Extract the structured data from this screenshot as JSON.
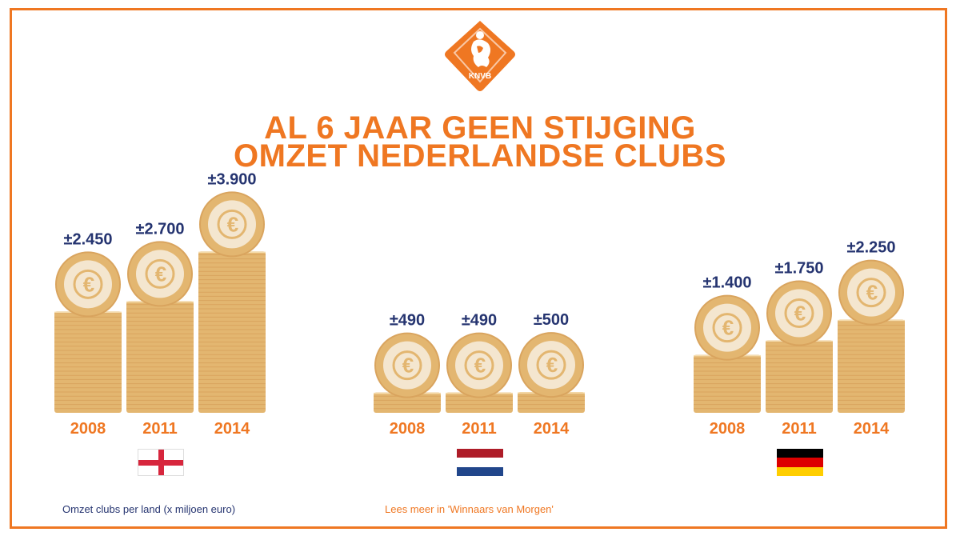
{
  "title": {
    "line1": "AL 6 JAAR GEEN STIJGING",
    "line2": "OMZET NEDERLANDSE CLUBS"
  },
  "logo": {
    "icon": "knvb-lion-shield-icon",
    "text": "KNVB"
  },
  "colors": {
    "accent": "#EF7722",
    "value_text": "#253470",
    "coin_gold": "#E3B670",
    "coin_face": "#F4E6CF",
    "coin_ring": "#D9A45E"
  },
  "chart_data": [
    {
      "type": "bar",
      "country": "England",
      "flag": "england-flag",
      "categories": [
        "2008",
        "2011",
        "2014"
      ],
      "values": [
        2450,
        2700,
        3900
      ],
      "labels": [
        "±2.450",
        "±2.700",
        "±3.900"
      ]
    },
    {
      "type": "bar",
      "country": "Netherlands",
      "flag": "netherlands-flag",
      "categories": [
        "2008",
        "2011",
        "2014"
      ],
      "values": [
        490,
        490,
        500
      ],
      "labels": [
        "±490",
        "±490",
        "±500"
      ]
    },
    {
      "type": "bar",
      "country": "Germany",
      "flag": "germany-flag",
      "categories": [
        "2008",
        "2011",
        "2014"
      ],
      "values": [
        1400,
        1750,
        2250
      ],
      "labels": [
        "±1.400",
        "±1.750",
        "±2.250"
      ]
    }
  ],
  "flags": {
    "netherlands": [
      "#AE1C28",
      "#FFFFFF",
      "#21468B"
    ],
    "germany": [
      "#000000",
      "#DD0000",
      "#FFCE00"
    ]
  },
  "footer": {
    "unit_note": "Omzet clubs per land (x miljoen euro)",
    "read_more": "Lees meer in 'Winnaars van Morgen'"
  }
}
